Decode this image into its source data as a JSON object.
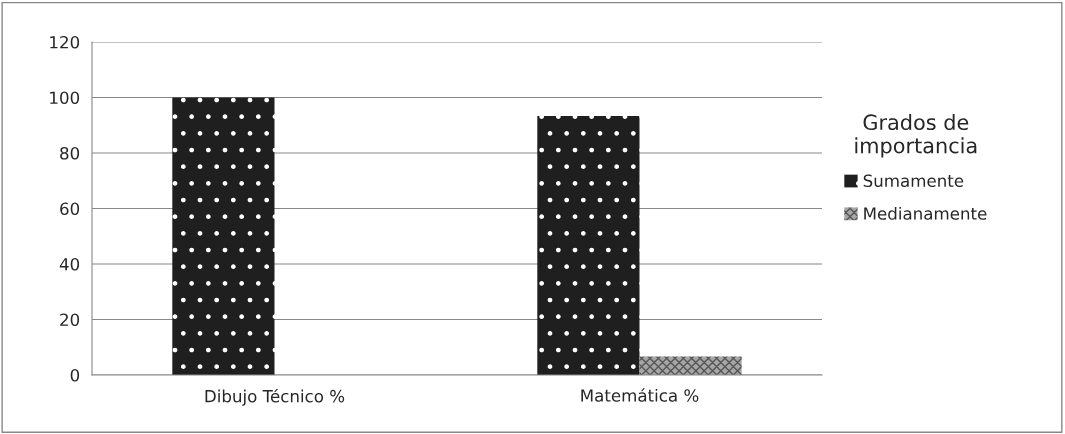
{
  "chart_data": {
    "type": "bar",
    "categories": [
      "Dibujo Técnico %",
      "Matemática %"
    ],
    "series": [
      {
        "name": "Sumamente",
        "color": "#1f1f1f",
        "values": [
          100,
          93.3
        ]
      },
      {
        "name": "Medianamente",
        "color": "#a6a6a6",
        "values": [
          0,
          6.7
        ]
      }
    ],
    "ylim": [
      0,
      120
    ],
    "yticks": [
      0,
      20,
      40,
      60,
      80,
      100,
      120
    ],
    "grid": "y",
    "legend": "right",
    "legend_title": "Grados de\nimportancia"
  }
}
